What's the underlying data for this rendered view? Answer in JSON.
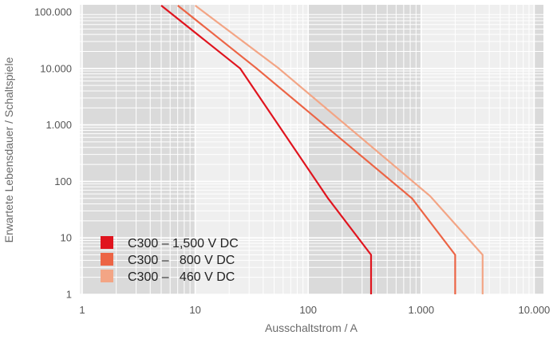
{
  "chart_data": {
    "type": "line",
    "x_scale": "log",
    "y_scale": "log",
    "xlim": [
      1,
      20000
    ],
    "ylim": [
      1,
      100000
    ],
    "xlabel": "Ausschaltstrom / A",
    "ylabel": "Erwartete Lebensdauer / Schaltspiele",
    "x_ticks": [
      {
        "value": 1,
        "label": "1"
      },
      {
        "value": 10,
        "label": "10"
      },
      {
        "value": 100,
        "label": "100"
      },
      {
        "value": 1000,
        "label": "1.000"
      },
      {
        "value": 10000,
        "label": "10.000"
      }
    ],
    "y_ticks": [
      {
        "value": 1,
        "label": "1"
      },
      {
        "value": 10,
        "label": "10"
      },
      {
        "value": 100,
        "label": "100"
      },
      {
        "value": 1000,
        "label": "1.000"
      },
      {
        "value": 10000,
        "label": "10.000"
      },
      {
        "value": 100000,
        "label": "100.000"
      }
    ],
    "grid": true,
    "legend_position": "bottom-left",
    "series": [
      {
        "name": "C300 – 1,500 V DC",
        "color": "#e0141e",
        "points": [
          [
            5,
            130000
          ],
          [
            25,
            10000
          ],
          [
            150,
            50
          ],
          [
            360,
            5
          ],
          [
            360,
            1
          ]
        ]
      },
      {
        "name": "C300 –   800 V DC",
        "color": "#ec6445",
        "points": [
          [
            7,
            130000
          ],
          [
            35,
            10000
          ],
          [
            830,
            50
          ],
          [
            2000,
            5
          ],
          [
            2000,
            1
          ]
        ]
      },
      {
        "name": "C300 –   460 V DC",
        "color": "#f3a585",
        "points": [
          [
            10,
            130000
          ],
          [
            55,
            10000
          ],
          [
            1200,
            55
          ],
          [
            3500,
            5
          ],
          [
            3500,
            1
          ]
        ]
      }
    ]
  }
}
